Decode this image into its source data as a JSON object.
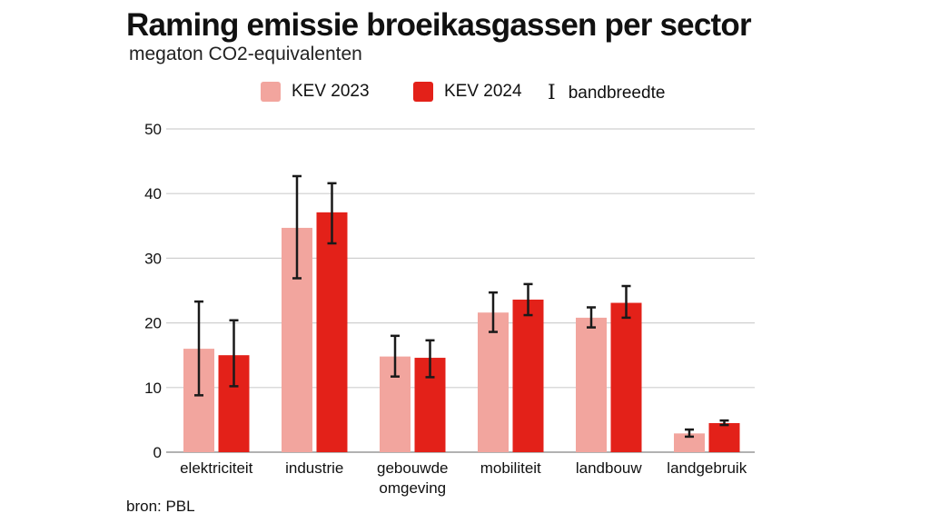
{
  "chart_data": {
    "type": "bar",
    "title": "Raming emissie broeikasgassen per sector",
    "subtitle": "megaton CO2-equivalenten",
    "xlabel": "",
    "ylabel": "",
    "ylim": [
      0,
      50
    ],
    "yticks": [
      "0",
      "10",
      "20",
      "30",
      "40",
      "50"
    ],
    "grid": true,
    "legend_position": "top",
    "categories": [
      [
        "elektriciteit"
      ],
      [
        "industrie"
      ],
      [
        "gebouwde",
        "omgeving"
      ],
      [
        "mobiliteit"
      ],
      [
        "landbouw"
      ],
      [
        "landgebruik"
      ]
    ],
    "series": [
      {
        "name": "KEV 2023",
        "color": "#F2A59E",
        "values": [
          16.0,
          34.7,
          14.8,
          21.6,
          20.8,
          2.9
        ],
        "error_low": [
          8.8,
          26.9,
          11.7,
          18.6,
          19.3,
          2.4
        ],
        "error_high": [
          23.3,
          42.7,
          18.0,
          24.7,
          22.4,
          3.5
        ]
      },
      {
        "name": "KEV 2024",
        "color": "#E32119",
        "values": [
          15.0,
          37.1,
          14.6,
          23.6,
          23.1,
          4.5
        ],
        "error_low": [
          10.2,
          32.3,
          11.6,
          21.2,
          20.8,
          4.2
        ],
        "error_high": [
          20.4,
          41.6,
          17.3,
          26.0,
          25.7,
          4.9
        ]
      }
    ],
    "error_bar_label": "bandbreedte",
    "error_bar_symbol": "I",
    "source": "bron: PBL"
  }
}
